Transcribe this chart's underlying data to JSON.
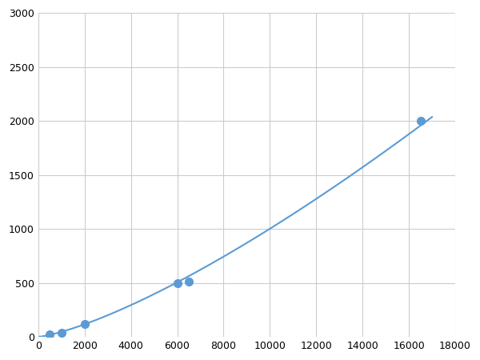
{
  "x_points": [
    500,
    1000,
    2000,
    6000,
    16500
  ],
  "y_points": [
    20,
    40,
    120,
    500,
    2000
  ],
  "marker_points_x": [
    500,
    1000,
    2000,
    6000,
    6500,
    16500
  ],
  "marker_points_y": [
    20,
    40,
    120,
    500,
    510,
    2000
  ],
  "line_color": "#5b9bd5",
  "marker_color": "#5b9bd5",
  "marker_size": 7,
  "xlim": [
    0,
    18000
  ],
  "ylim": [
    0,
    3000
  ],
  "xticks": [
    0,
    2000,
    4000,
    6000,
    8000,
    10000,
    12000,
    14000,
    16000,
    18000
  ],
  "yticks": [
    0,
    500,
    1000,
    1500,
    2000,
    2500,
    3000
  ],
  "grid_color": "#cccccc",
  "background_color": "#ffffff",
  "fig_width": 6.0,
  "fig_height": 4.5,
  "dpi": 100
}
